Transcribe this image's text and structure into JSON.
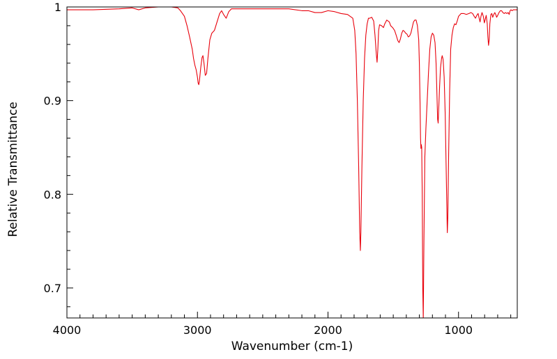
{
  "chart_data": {
    "type": "line",
    "title": "",
    "xlabel": "Wavenumber (cm-1)",
    "ylabel": "Relative Transmittance",
    "xlim": [
      4000,
      550
    ],
    "ylim": [
      0.668,
      1.0
    ],
    "x_reversed": true,
    "grid": false,
    "legend": "none",
    "x_ticks": [
      {
        "value": 4000,
        "label": "4000"
      },
      {
        "value": 3000,
        "label": "3000"
      },
      {
        "value": 2000,
        "label": "2000"
      },
      {
        "value": 1000,
        "label": "1000"
      }
    ],
    "y_ticks": [
      {
        "value": 1.0,
        "label": "1"
      },
      {
        "value": 0.9,
        "label": "0.9"
      },
      {
        "value": 0.8,
        "label": "0.8"
      },
      {
        "value": 0.7,
        "label": "0.7"
      }
    ],
    "series": [
      {
        "color": "#e8000b",
        "points": [
          [
            4000,
            0.997
          ],
          [
            3800,
            0.997
          ],
          [
            3600,
            0.998
          ],
          [
            3500,
            0.999
          ],
          [
            3450,
            0.997
          ],
          [
            3400,
            0.999
          ],
          [
            3300,
            1.0
          ],
          [
            3200,
            1.0
          ],
          [
            3150,
            0.999
          ],
          [
            3130,
            0.996
          ],
          [
            3100,
            0.99
          ],
          [
            3080,
            0.98
          ],
          [
            3060,
            0.968
          ],
          [
            3040,
            0.955
          ],
          [
            3030,
            0.945
          ],
          [
            3020,
            0.938
          ],
          [
            3010,
            0.933
          ],
          [
            3000,
            0.925
          ],
          [
            2995,
            0.919
          ],
          [
            2990,
            0.917
          ],
          [
            2985,
            0.921
          ],
          [
            2975,
            0.935
          ],
          [
            2965,
            0.946
          ],
          [
            2958,
            0.948
          ],
          [
            2950,
            0.94
          ],
          [
            2940,
            0.927
          ],
          [
            2930,
            0.929
          ],
          [
            2920,
            0.945
          ],
          [
            2905,
            0.965
          ],
          [
            2890,
            0.972
          ],
          [
            2870,
            0.975
          ],
          [
            2850,
            0.984
          ],
          [
            2830,
            0.993
          ],
          [
            2815,
            0.996
          ],
          [
            2800,
            0.992
          ],
          [
            2780,
            0.988
          ],
          [
            2760,
            0.995
          ],
          [
            2740,
            0.998
          ],
          [
            2700,
            0.998
          ],
          [
            2600,
            0.998
          ],
          [
            2500,
            0.998
          ],
          [
            2400,
            0.998
          ],
          [
            2300,
            0.998
          ],
          [
            2200,
            0.996
          ],
          [
            2150,
            0.996
          ],
          [
            2100,
            0.994
          ],
          [
            2050,
            0.994
          ],
          [
            2000,
            0.996
          ],
          [
            1950,
            0.995
          ],
          [
            1900,
            0.993
          ],
          [
            1850,
            0.992
          ],
          [
            1810,
            0.988
          ],
          [
            1795,
            0.975
          ],
          [
            1785,
            0.95
          ],
          [
            1775,
            0.9
          ],
          [
            1765,
            0.83
          ],
          [
            1757,
            0.76
          ],
          [
            1752,
            0.74
          ],
          [
            1748,
            0.76
          ],
          [
            1740,
            0.83
          ],
          [
            1730,
            0.9
          ],
          [
            1720,
            0.945
          ],
          [
            1710,
            0.97
          ],
          [
            1700,
            0.982
          ],
          [
            1690,
            0.988
          ],
          [
            1680,
            0.988
          ],
          [
            1665,
            0.989
          ],
          [
            1650,
            0.985
          ],
          [
            1640,
            0.97
          ],
          [
            1630,
            0.95
          ],
          [
            1624,
            0.941
          ],
          [
            1618,
            0.955
          ],
          [
            1612,
            0.975
          ],
          [
            1605,
            0.981
          ],
          [
            1590,
            0.98
          ],
          [
            1575,
            0.978
          ],
          [
            1565,
            0.982
          ],
          [
            1550,
            0.986
          ],
          [
            1540,
            0.985
          ],
          [
            1530,
            0.984
          ],
          [
            1520,
            0.98
          ],
          [
            1505,
            0.978
          ],
          [
            1490,
            0.975
          ],
          [
            1478,
            0.97
          ],
          [
            1465,
            0.964
          ],
          [
            1455,
            0.962
          ],
          [
            1445,
            0.966
          ],
          [
            1435,
            0.972
          ],
          [
            1425,
            0.975
          ],
          [
            1415,
            0.974
          ],
          [
            1405,
            0.972
          ],
          [
            1395,
            0.971
          ],
          [
            1385,
            0.968
          ],
          [
            1375,
            0.969
          ],
          [
            1365,
            0.972
          ],
          [
            1355,
            0.978
          ],
          [
            1345,
            0.984
          ],
          [
            1335,
            0.986
          ],
          [
            1325,
            0.986
          ],
          [
            1315,
            0.98
          ],
          [
            1305,
            0.965
          ],
          [
            1300,
            0.94
          ],
          [
            1295,
            0.9
          ],
          [
            1291,
            0.86
          ],
          [
            1288,
            0.849
          ],
          [
            1285,
            0.853
          ],
          [
            1282,
            0.85
          ],
          [
            1278,
            0.8
          ],
          [
            1274,
            0.7
          ],
          [
            1270,
            0.667
          ],
          [
            1265,
            0.75
          ],
          [
            1258,
            0.84
          ],
          [
            1250,
            0.87
          ],
          [
            1240,
            0.9
          ],
          [
            1230,
            0.93
          ],
          [
            1220,
            0.955
          ],
          [
            1210,
            0.968
          ],
          [
            1200,
            0.972
          ],
          [
            1190,
            0.97
          ],
          [
            1180,
            0.962
          ],
          [
            1172,
            0.94
          ],
          [
            1165,
            0.905
          ],
          [
            1160,
            0.88
          ],
          [
            1156,
            0.876
          ],
          [
            1152,
            0.89
          ],
          [
            1145,
            0.915
          ],
          [
            1138,
            0.935
          ],
          [
            1130,
            0.945
          ],
          [
            1125,
            0.948
          ],
          [
            1118,
            0.944
          ],
          [
            1110,
            0.925
          ],
          [
            1102,
            0.885
          ],
          [
            1095,
            0.83
          ],
          [
            1090,
            0.79
          ],
          [
            1086,
            0.759
          ],
          [
            1082,
            0.775
          ],
          [
            1076,
            0.84
          ],
          [
            1068,
            0.91
          ],
          [
            1060,
            0.955
          ],
          [
            1050,
            0.97
          ],
          [
            1040,
            0.978
          ],
          [
            1030,
            0.982
          ],
          [
            1020,
            0.981
          ],
          [
            1010,
            0.985
          ],
          [
            1000,
            0.99
          ],
          [
            980,
            0.993
          ],
          [
            960,
            0.993
          ],
          [
            940,
            0.992
          ],
          [
            920,
            0.993
          ],
          [
            905,
            0.994
          ],
          [
            892,
            0.993
          ],
          [
            880,
            0.99
          ],
          [
            870,
            0.988
          ],
          [
            860,
            0.991
          ],
          [
            850,
            0.993
          ],
          [
            842,
            0.988
          ],
          [
            835,
            0.984
          ],
          [
            828,
            0.99
          ],
          [
            820,
            0.994
          ],
          [
            810,
            0.99
          ],
          [
            802,
            0.983
          ],
          [
            795,
            0.987
          ],
          [
            788,
            0.991
          ],
          [
            780,
            0.982
          ],
          [
            775,
            0.968
          ],
          [
            770,
            0.959
          ],
          [
            765,
            0.965
          ],
          [
            760,
            0.982
          ],
          [
            752,
            0.992
          ],
          [
            745,
            0.993
          ],
          [
            738,
            0.989
          ],
          [
            730,
            0.992
          ],
          [
            722,
            0.994
          ],
          [
            715,
            0.992
          ],
          [
            708,
            0.989
          ],
          [
            700,
            0.991
          ],
          [
            690,
            0.994
          ],
          [
            680,
            0.996
          ],
          [
            670,
            0.996
          ],
          [
            660,
            0.994
          ],
          [
            650,
            0.993
          ],
          [
            640,
            0.994
          ],
          [
            630,
            0.993
          ],
          [
            620,
            0.994
          ],
          [
            612,
            0.992
          ],
          [
            605,
            0.996
          ],
          [
            598,
            0.997
          ],
          [
            590,
            0.996
          ],
          [
            580,
            0.997
          ],
          [
            565,
            0.997
          ],
          [
            550,
            0.997
          ]
        ]
      }
    ]
  }
}
